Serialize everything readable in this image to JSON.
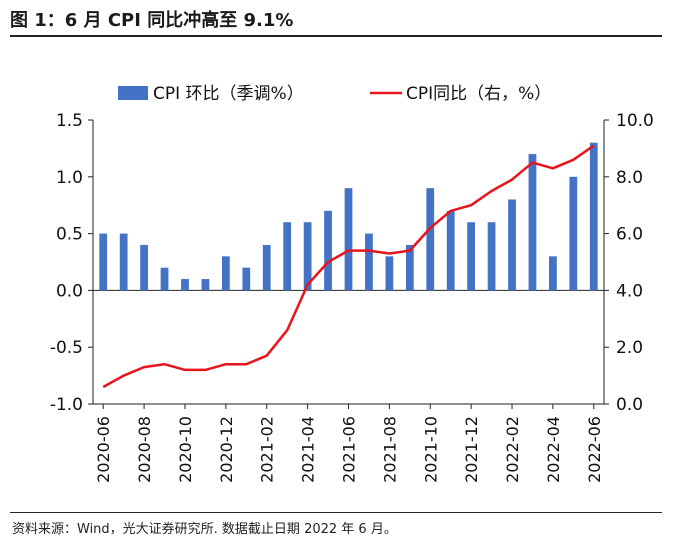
{
  "header": {
    "title": "图 1：6 月 CPI 同比冲高至 9.1%"
  },
  "footer": {
    "source": "资料来源：Wind，光大证券研究所. 数据截止日期 2022 年 6 月。"
  },
  "chart_data": {
    "type": "bar+line",
    "categories": [
      "2020-06",
      "2020-07",
      "2020-08",
      "2020-09",
      "2020-10",
      "2020-11",
      "2020-12",
      "2021-01",
      "2021-02",
      "2021-03",
      "2021-04",
      "2021-05",
      "2021-06",
      "2021-07",
      "2021-08",
      "2021-09",
      "2021-10",
      "2021-11",
      "2021-12",
      "2022-01",
      "2022-02",
      "2022-03",
      "2022-04",
      "2022-05",
      "2022-06"
    ],
    "x_tick_labels": [
      "2020-06",
      "2020-08",
      "2020-10",
      "2020-12",
      "2021-02",
      "2021-04",
      "2021-06",
      "2021-08",
      "2021-10",
      "2021-12",
      "2022-02",
      "2022-04",
      "2022-06"
    ],
    "series": [
      {
        "name": "CPI 环比（季调%）",
        "type": "bar",
        "axis": "left",
        "color": "#4472C4",
        "values": [
          0.5,
          0.5,
          0.4,
          0.2,
          0.1,
          0.1,
          0.3,
          0.2,
          0.4,
          0.6,
          0.6,
          0.7,
          0.9,
          0.5,
          0.3,
          0.4,
          0.9,
          0.7,
          0.6,
          0.6,
          0.8,
          1.2,
          0.3,
          1.0,
          1.3
        ]
      },
      {
        "name": "CPI同比（右，%）",
        "type": "line",
        "axis": "right",
        "color": "#E8141B",
        "values": [
          0.6,
          1.0,
          1.3,
          1.4,
          1.2,
          1.2,
          1.4,
          1.4,
          1.7,
          2.6,
          4.2,
          5.0,
          5.4,
          5.4,
          5.3,
          5.4,
          6.2,
          6.8,
          7.0,
          7.5,
          7.9,
          8.5,
          8.3,
          8.6,
          9.1
        ]
      }
    ],
    "y_left": {
      "min": -1.0,
      "max": 1.5,
      "ticks": [
        "1.5",
        "1.0",
        "0.5",
        "0.0",
        "-0.5",
        "-1.0"
      ]
    },
    "y_right": {
      "min": 0.0,
      "max": 10.0,
      "ticks": [
        "10.0",
        "8.0",
        "6.0",
        "4.0",
        "2.0",
        "0.0"
      ]
    },
    "legend_position": "top",
    "grid": false
  }
}
